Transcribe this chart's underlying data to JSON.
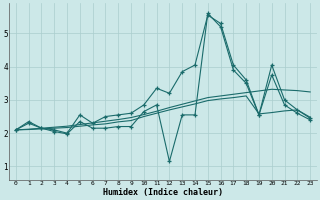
{
  "xlabel": "Humidex (Indice chaleur)",
  "bg_color": "#cce8e8",
  "line_color": "#1a6b6b",
  "grid_color": "#aacece",
  "xlim": [
    -0.5,
    23.5
  ],
  "ylim": [
    0.6,
    5.9
  ],
  "yticks": [
    1,
    2,
    3,
    4,
    5
  ],
  "xticks": [
    0,
    1,
    2,
    3,
    4,
    5,
    6,
    7,
    8,
    9,
    10,
    11,
    12,
    13,
    14,
    15,
    16,
    17,
    18,
    19,
    20,
    21,
    22,
    23
  ],
  "lines": [
    {
      "x": [
        0,
        1,
        2,
        3,
        4,
        5,
        6,
        7,
        8,
        9,
        10,
        11,
        12,
        13,
        14,
        15,
        16,
        17,
        18,
        19,
        20,
        21,
        22,
        23
      ],
      "y": [
        2.1,
        2.35,
        2.15,
        2.1,
        2.0,
        2.55,
        2.3,
        2.5,
        2.55,
        2.6,
        2.85,
        3.35,
        3.2,
        3.85,
        4.05,
        5.55,
        5.3,
        4.05,
        3.6,
        2.55,
        4.05,
        3.0,
        2.7,
        2.45
      ],
      "marker": "+"
    },
    {
      "x": [
        0,
        1,
        2,
        3,
        4,
        5,
        6,
        7,
        8,
        9,
        10,
        11,
        12,
        13,
        14,
        15,
        16,
        17,
        18,
        19,
        20,
        21,
        22,
        23
      ],
      "y": [
        2.1,
        2.3,
        2.15,
        2.05,
        1.98,
        2.35,
        2.15,
        2.15,
        2.2,
        2.2,
        2.65,
        2.85,
        1.15,
        2.55,
        2.55,
        5.6,
        5.2,
        3.9,
        3.5,
        2.55,
        3.75,
        2.85,
        2.6,
        2.4
      ],
      "marker": "+"
    },
    {
      "x": [
        0,
        1,
        2,
        3,
        4,
        5,
        6,
        7,
        8,
        9,
        10,
        11,
        12,
        13,
        14,
        15,
        16,
        17,
        18,
        19,
        20,
        21,
        22,
        23
      ],
      "y": [
        2.1,
        2.12,
        2.15,
        2.18,
        2.21,
        2.26,
        2.31,
        2.36,
        2.41,
        2.47,
        2.56,
        2.66,
        2.77,
        2.87,
        2.97,
        3.07,
        3.12,
        3.17,
        3.22,
        3.27,
        3.32,
        3.3,
        3.28,
        3.24
      ],
      "marker": null
    },
    {
      "x": [
        0,
        1,
        2,
        3,
        4,
        5,
        6,
        7,
        8,
        9,
        10,
        11,
        12,
        13,
        14,
        15,
        16,
        17,
        18,
        19,
        20,
        21,
        22,
        23
      ],
      "y": [
        2.1,
        2.11,
        2.13,
        2.15,
        2.17,
        2.21,
        2.25,
        2.28,
        2.34,
        2.38,
        2.5,
        2.6,
        2.7,
        2.79,
        2.88,
        2.98,
        3.03,
        3.07,
        3.12,
        2.58,
        2.62,
        2.67,
        2.7,
        2.48
      ],
      "marker": null
    }
  ]
}
